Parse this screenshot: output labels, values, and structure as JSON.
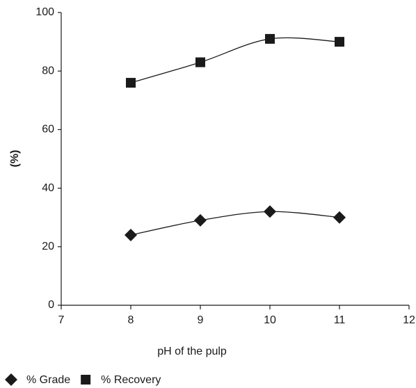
{
  "chart_data": {
    "type": "line",
    "x_label": "pH of the pulp",
    "y_label": "(%)",
    "x": [
      8,
      9,
      10,
      11
    ],
    "series": [
      {
        "name": "% Grade",
        "color": "#1a1a1a",
        "marker": "diamond",
        "values": [
          24,
          29,
          32,
          30
        ]
      },
      {
        "name": "% Recovery",
        "color": "#1a1a1a",
        "marker": "square",
        "values": [
          76,
          83,
          91,
          90
        ]
      }
    ],
    "xlim": [
      7,
      12
    ],
    "xticks": [
      7,
      8,
      9,
      10,
      11,
      12
    ],
    "ylim": [
      0,
      100
    ],
    "yticks": [
      0,
      20,
      40,
      60,
      80,
      100
    ],
    "smooth": true,
    "legend": "bottom-left"
  }
}
